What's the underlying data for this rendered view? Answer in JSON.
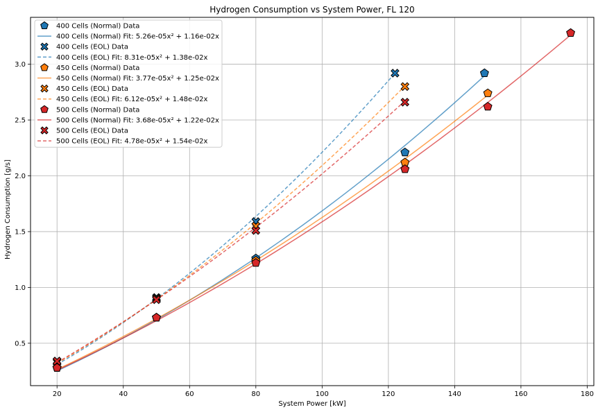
{
  "chart_data": {
    "type": "scatter",
    "title": "Hydrogen Consumption vs System Power, FL 120",
    "xlabel": "System Power [kW]",
    "ylabel": "Hydrogen Consumption [g/s]",
    "xlim": [
      12,
      182
    ],
    "ylim": [
      0.12,
      3.42
    ],
    "x_ticks": [
      20,
      40,
      60,
      80,
      100,
      120,
      140,
      160,
      180
    ],
    "y_ticks": [
      0.5,
      1.0,
      1.5,
      2.0,
      2.5,
      3.0
    ],
    "x_tick_labels": [
      "20",
      "40",
      "60",
      "80",
      "100",
      "120",
      "140",
      "160",
      "180"
    ],
    "y_tick_labels": [
      "0.5",
      "1.0",
      "1.5",
      "2.0",
      "2.5",
      "3.0"
    ],
    "grid": true,
    "legend_position": "upper-left",
    "colors": {
      "400": "#1f77b4",
      "450": "#ff7f0e",
      "500": "#d62728"
    },
    "series": [
      {
        "name": "400 Cells (Normal) Data",
        "kind": "points",
        "marker": "pentagon",
        "color": "#1f77b4",
        "points": [
          [
            20,
            0.28
          ],
          [
            50,
            0.73
          ],
          [
            80,
            1.26
          ],
          [
            125,
            2.21
          ],
          [
            149,
            2.92
          ]
        ]
      },
      {
        "name": "400 Cells (Normal) Fit: 5.26e-05x² + 1.16e-02x",
        "kind": "fit",
        "dash": false,
        "color": "#1f77b4",
        "a": 5.26e-05,
        "b": 0.0116,
        "x_range": [
          20,
          149
        ]
      },
      {
        "name": "400 Cells (EOL) Data",
        "kind": "points",
        "marker": "x",
        "color": "#1f77b4",
        "points": [
          [
            20,
            0.34
          ],
          [
            50,
            0.91
          ],
          [
            80,
            1.59
          ],
          [
            122,
            2.92
          ]
        ]
      },
      {
        "name": "400 Cells (EOL) Fit: 8.31e-05x² + 1.38e-02x",
        "kind": "fit",
        "dash": true,
        "color": "#1f77b4",
        "a": 8.31e-05,
        "b": 0.0138,
        "x_range": [
          20,
          122
        ]
      },
      {
        "name": "450 Cells (Normal) Data",
        "kind": "points",
        "marker": "pentagon",
        "color": "#ff7f0e",
        "points": [
          [
            20,
            0.28
          ],
          [
            50,
            0.73
          ],
          [
            80,
            1.24
          ],
          [
            125,
            2.12
          ],
          [
            150,
            2.74
          ]
        ]
      },
      {
        "name": "450 Cells (Normal) Fit: 3.77e-05x² + 1.25e-02x",
        "kind": "fit",
        "dash": false,
        "color": "#ff7f0e",
        "a": 3.77e-05,
        "b": 0.0125,
        "x_range": [
          20,
          150
        ]
      },
      {
        "name": "450 Cells (EOL) Data",
        "kind": "points",
        "marker": "x",
        "color": "#ff7f0e",
        "points": [
          [
            20,
            0.33
          ],
          [
            50,
            0.9
          ],
          [
            80,
            1.55
          ],
          [
            125,
            2.8
          ]
        ]
      },
      {
        "name": "450 Cells (EOL) Fit: 6.12e-05x² + 1.48e-02x",
        "kind": "fit",
        "dash": true,
        "color": "#ff7f0e",
        "a": 6.12e-05,
        "b": 0.0148,
        "x_range": [
          20,
          125
        ]
      },
      {
        "name": "500 Cells (Normal) Data",
        "kind": "points",
        "marker": "pentagon",
        "color": "#d62728",
        "points": [
          [
            20,
            0.28
          ],
          [
            50,
            0.73
          ],
          [
            80,
            1.22
          ],
          [
            125,
            2.06
          ],
          [
            150,
            2.62
          ],
          [
            175,
            3.28
          ]
        ]
      },
      {
        "name": "500 Cells (Normal) Fit: 3.68e-05x² + 1.22e-02x",
        "kind": "fit",
        "dash": false,
        "color": "#d62728",
        "a": 3.68e-05,
        "b": 0.0122,
        "x_range": [
          20,
          175
        ]
      },
      {
        "name": "500 Cells (EOL) Data",
        "kind": "points",
        "marker": "x",
        "color": "#d62728",
        "points": [
          [
            20,
            0.34
          ],
          [
            50,
            0.89
          ],
          [
            80,
            1.51
          ],
          [
            125,
            2.66
          ]
        ]
      },
      {
        "name": "500 Cells (EOL) Fit: 4.78e-05x² + 1.54e-02x",
        "kind": "fit",
        "dash": true,
        "color": "#d62728",
        "a": 4.78e-05,
        "b": 0.0154,
        "x_range": [
          20,
          125
        ]
      }
    ]
  }
}
